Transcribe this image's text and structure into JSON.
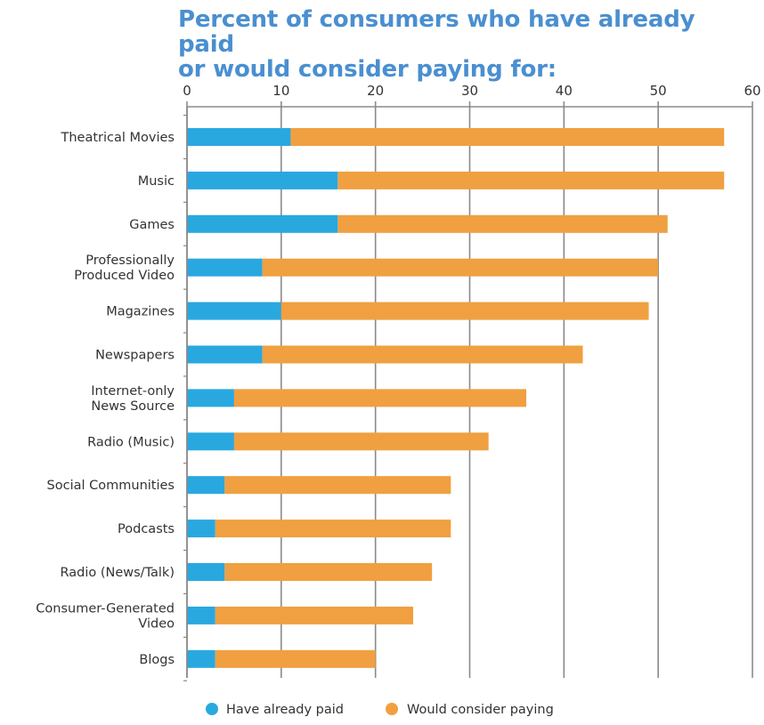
{
  "chart_data": {
    "type": "bar",
    "stacked": true,
    "orientation": "horizontal",
    "title_lines": [
      "Percent of consumers who have already paid",
      "or would consider paying for:"
    ],
    "categories": [
      [
        "Theatrical Movies"
      ],
      [
        "Music"
      ],
      [
        "Games"
      ],
      [
        "Professionally",
        "Produced Video"
      ],
      [
        "Magazines"
      ],
      [
        "Newspapers"
      ],
      [
        "Internet-only",
        "News Source"
      ],
      [
        "Radio (Music)"
      ],
      [
        "Social Communities"
      ],
      [
        "Podcasts"
      ],
      [
        "Radio (News/Talk)"
      ],
      [
        "Consumer-Generated",
        "Video"
      ],
      [
        "Blogs"
      ]
    ],
    "series": [
      {
        "name": "Have already paid",
        "color": "#29a8e0",
        "values": [
          11,
          16,
          16,
          8,
          10,
          8,
          5,
          5,
          4,
          3,
          4,
          3,
          3
        ]
      },
      {
        "name": "Would consider paying",
        "color": "#f0a040",
        "values": [
          46,
          41,
          35,
          42,
          39,
          34,
          31,
          27,
          24,
          25,
          22,
          21,
          17
        ]
      }
    ],
    "xlim": [
      0,
      60
    ],
    "xticks": [
      0,
      10,
      20,
      30,
      40,
      50,
      60
    ],
    "grid": true,
    "legend_position": "bottom"
  }
}
